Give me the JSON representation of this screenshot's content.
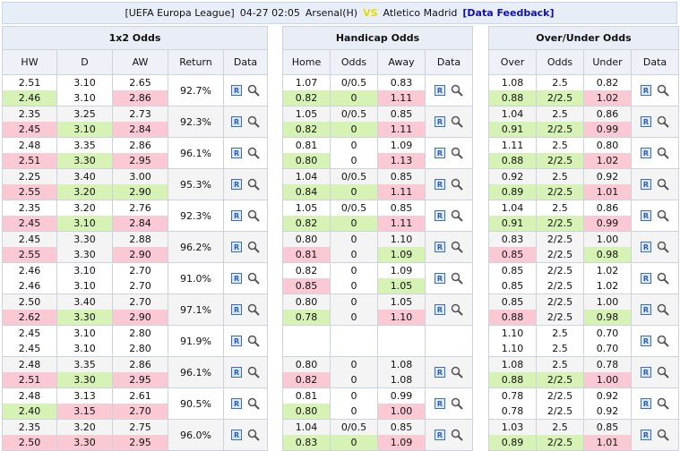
{
  "header": {
    "league": "[UEFA Europa League]",
    "datetime": "04-27 02:05",
    "home": "Arsenal(H)",
    "vs": "VS",
    "away": "Atletico Madrid",
    "feedback": "[Data Feedback]"
  },
  "groups": {
    "x12": {
      "title": "1x2 Odds",
      "cols": [
        "HW",
        "D",
        "AW",
        "Return",
        "Data"
      ]
    },
    "handicap": {
      "title": "Handicap Odds",
      "cols": [
        "Home",
        "Odds",
        "Away",
        "Data"
      ]
    },
    "ou": {
      "title": "Over/Under Odds",
      "cols": [
        "Over",
        "Odds",
        "Under",
        "Data"
      ]
    }
  },
  "icons": {
    "report": "R",
    "search": "magnifier-icon"
  },
  "rows": [
    {
      "x12": {
        "hw": [
          "2.51",
          "2.46",
          "g"
        ],
        "d": [
          "3.10",
          "3.10",
          ""
        ],
        "aw": [
          "2.65",
          "2.86",
          "r"
        ],
        "ret": "92.7%"
      },
      "hc": {
        "home": [
          "1.07",
          "0.82",
          "g"
        ],
        "odds": [
          "0/0.5",
          "0",
          "g"
        ],
        "away": [
          "0.83",
          "1.11",
          "r"
        ]
      },
      "ou": {
        "over": [
          "1.08",
          "0.88",
          "g"
        ],
        "odds": [
          "2.5",
          "2/2.5",
          "g"
        ],
        "under": [
          "0.82",
          "1.02",
          "r"
        ]
      }
    },
    {
      "x12": {
        "hw": [
          "2.35",
          "2.45",
          "r"
        ],
        "d": [
          "3.25",
          "3.10",
          "g"
        ],
        "aw": [
          "2.73",
          "2.84",
          "r"
        ],
        "ret": "92.3%"
      },
      "hc": {
        "home": [
          "1.05",
          "0.82",
          "g"
        ],
        "odds": [
          "0/0.5",
          "0",
          "g"
        ],
        "away": [
          "0.85",
          "1.11",
          "r"
        ]
      },
      "ou": {
        "over": [
          "1.04",
          "0.91",
          "g"
        ],
        "odds": [
          "2.5",
          "2/2.5",
          "g"
        ],
        "under": [
          "0.86",
          "0.99",
          "r"
        ]
      }
    },
    {
      "x12": {
        "hw": [
          "2.48",
          "2.51",
          "r"
        ],
        "d": [
          "3.35",
          "3.30",
          "g"
        ],
        "aw": [
          "2.86",
          "2.95",
          "r"
        ],
        "ret": "96.1%"
      },
      "hc": {
        "home": [
          "0.81",
          "0.80",
          "g"
        ],
        "odds": [
          "0",
          "0",
          ""
        ],
        "away": [
          "1.09",
          "1.13",
          "r"
        ]
      },
      "ou": {
        "over": [
          "1.11",
          "0.88",
          "g"
        ],
        "odds": [
          "2.5",
          "2/2.5",
          "g"
        ],
        "under": [
          "0.80",
          "1.02",
          "r"
        ]
      }
    },
    {
      "x12": {
        "hw": [
          "2.25",
          "2.55",
          "r"
        ],
        "d": [
          "3.40",
          "3.20",
          "g"
        ],
        "aw": [
          "3.00",
          "2.90",
          "g"
        ],
        "ret": "95.3%"
      },
      "hc": {
        "home": [
          "1.04",
          "0.84",
          "g"
        ],
        "odds": [
          "0/0.5",
          "0",
          "g"
        ],
        "away": [
          "0.85",
          "1.11",
          "r"
        ]
      },
      "ou": {
        "over": [
          "0.92",
          "0.89",
          "g"
        ],
        "odds": [
          "2.5",
          "2/2.5",
          "g"
        ],
        "under": [
          "0.92",
          "1.01",
          "r"
        ]
      }
    },
    {
      "x12": {
        "hw": [
          "2.35",
          "2.45",
          "r"
        ],
        "d": [
          "3.20",
          "3.10",
          "g"
        ],
        "aw": [
          "2.76",
          "2.84",
          "r"
        ],
        "ret": "92.3%"
      },
      "hc": {
        "home": [
          "1.05",
          "0.82",
          "g"
        ],
        "odds": [
          "0/0.5",
          "0",
          "g"
        ],
        "away": [
          "0.85",
          "1.11",
          "r"
        ]
      },
      "ou": {
        "over": [
          "1.04",
          "0.91",
          "g"
        ],
        "odds": [
          "2.5",
          "2/2.5",
          "g"
        ],
        "under": [
          "0.86",
          "0.99",
          "r"
        ]
      }
    },
    {
      "x12": {
        "hw": [
          "2.45",
          "2.55",
          "r"
        ],
        "d": [
          "3.30",
          "3.30",
          ""
        ],
        "aw": [
          "2.88",
          "2.90",
          "r"
        ],
        "ret": "96.2%"
      },
      "hc": {
        "home": [
          "0.80",
          "0.81",
          "r"
        ],
        "odds": [
          "0",
          "0",
          ""
        ],
        "away": [
          "1.10",
          "1.09",
          "g"
        ]
      },
      "ou": {
        "over": [
          "0.83",
          "0.85",
          "r"
        ],
        "odds": [
          "2/2.5",
          "2/2.5",
          ""
        ],
        "under": [
          "1.00",
          "0.98",
          "g"
        ]
      }
    },
    {
      "x12": {
        "hw": [
          "2.46",
          "2.46",
          ""
        ],
        "d": [
          "3.10",
          "3.10",
          ""
        ],
        "aw": [
          "2.70",
          "2.70",
          ""
        ],
        "ret": "91.0%"
      },
      "hc": {
        "home": [
          "0.82",
          "0.85",
          "r"
        ],
        "odds": [
          "0",
          "0",
          ""
        ],
        "away": [
          "1.09",
          "1.05",
          "g"
        ]
      },
      "ou": {
        "over": [
          "0.85",
          "0.85",
          ""
        ],
        "odds": [
          "2/2.5",
          "2/2.5",
          ""
        ],
        "under": [
          "1.02",
          "1.02",
          ""
        ]
      }
    },
    {
      "x12": {
        "hw": [
          "2.50",
          "2.62",
          "r"
        ],
        "d": [
          "3.40",
          "3.30",
          "g"
        ],
        "aw": [
          "2.70",
          "2.90",
          "r"
        ],
        "ret": "97.1%"
      },
      "hc": {
        "home": [
          "0.80",
          "0.78",
          "g"
        ],
        "odds": [
          "0",
          "0",
          ""
        ],
        "away": [
          "1.05",
          "1.10",
          "r"
        ]
      },
      "ou": {
        "over": [
          "0.85",
          "0.88",
          "r"
        ],
        "odds": [
          "2/2.5",
          "2/2.5",
          ""
        ],
        "under": [
          "1.00",
          "0.98",
          "g"
        ]
      }
    },
    {
      "x12": {
        "hw": [
          "2.45",
          "2.45",
          ""
        ],
        "d": [
          "3.10",
          "3.10",
          ""
        ],
        "aw": [
          "2.80",
          "2.80",
          ""
        ],
        "ret": "91.9%"
      },
      "hc": null,
      "ou": {
        "over": [
          "1.10",
          "1.10",
          ""
        ],
        "odds": [
          "2.5",
          "2.5",
          ""
        ],
        "under": [
          "0.70",
          "0.70",
          ""
        ]
      }
    },
    {
      "x12": {
        "hw": [
          "2.48",
          "2.51",
          "r"
        ],
        "d": [
          "3.35",
          "3.30",
          "g"
        ],
        "aw": [
          "2.86",
          "2.95",
          "r"
        ],
        "ret": "96.1%"
      },
      "hc": {
        "home": [
          "0.80",
          "0.82",
          "r"
        ],
        "odds": [
          "0",
          "0",
          ""
        ],
        "away": [
          "1.08",
          "1.08",
          ""
        ]
      },
      "ou": {
        "over": [
          "1.08",
          "0.88",
          "g"
        ],
        "odds": [
          "2.5",
          "2/2.5",
          "g"
        ],
        "under": [
          "0.78",
          "1.00",
          "r"
        ]
      }
    },
    {
      "x12": {
        "hw": [
          "2.48",
          "2.40",
          "g"
        ],
        "d": [
          "3.13",
          "3.15",
          "r"
        ],
        "aw": [
          "2.61",
          "2.70",
          "r"
        ],
        "ret": "90.5%"
      },
      "hc": {
        "home": [
          "0.81",
          "0.80",
          "g"
        ],
        "odds": [
          "0",
          "0",
          ""
        ],
        "away": [
          "0.99",
          "1.00",
          "r"
        ]
      },
      "ou": {
        "over": [
          "0.78",
          "0.78",
          ""
        ],
        "odds": [
          "2/2.5",
          "2/2.5",
          ""
        ],
        "under": [
          "0.92",
          "0.92",
          ""
        ]
      }
    },
    {
      "x12": {
        "hw": [
          "2.35",
          "2.50",
          "r"
        ],
        "d": [
          "3.20",
          "3.30",
          "r"
        ],
        "aw": [
          "2.75",
          "2.95",
          "r"
        ],
        "ret": "96.0%"
      },
      "hc": {
        "home": [
          "1.04",
          "0.83",
          "g"
        ],
        "odds": [
          "0/0.5",
          "0",
          "g"
        ],
        "away": [
          "0.85",
          "1.09",
          "r"
        ]
      },
      "ou": {
        "over": [
          "1.03",
          "0.89",
          "g"
        ],
        "odds": [
          "2.5",
          "2/2.5",
          "g"
        ],
        "under": [
          "0.85",
          "1.01",
          "r"
        ]
      }
    }
  ]
}
